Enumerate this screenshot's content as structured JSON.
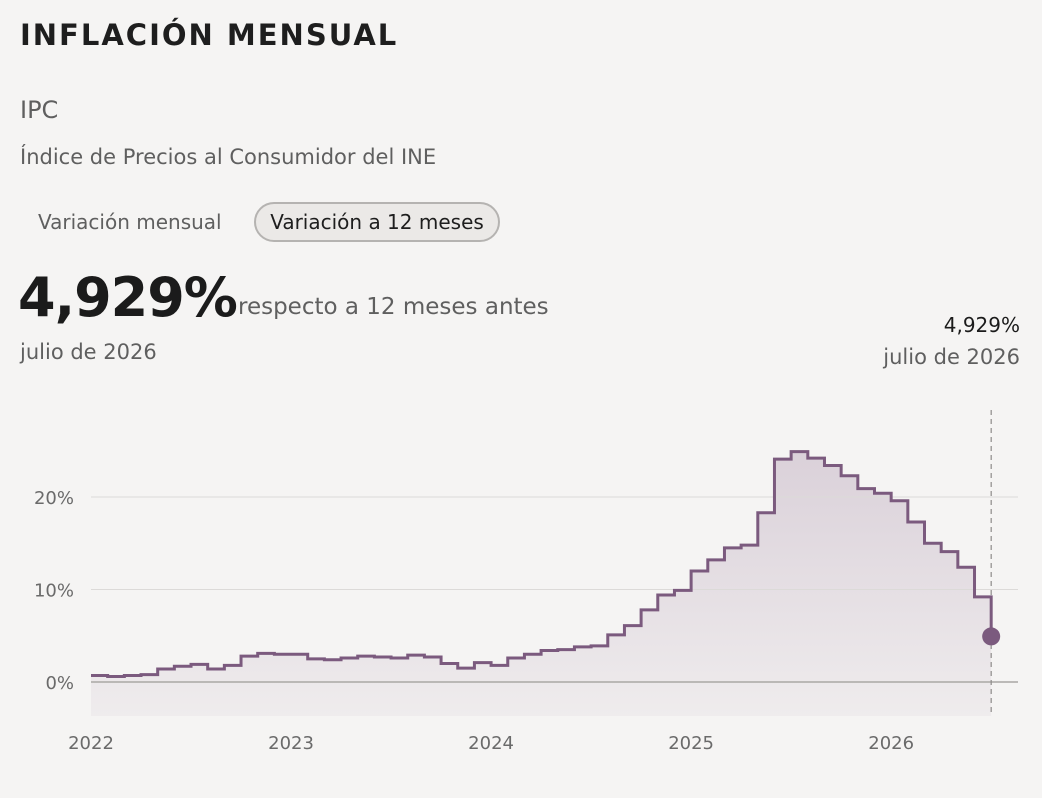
{
  "header": {
    "section_title": "INFLACIÓN MENSUAL",
    "indicator": "IPC",
    "indicator_description": "Índice de Precios al Consumidor del INE"
  },
  "tabs": [
    {
      "label": "Variación mensual",
      "active": false
    },
    {
      "label": "Variación a 12 meses",
      "active": true
    }
  ],
  "summary": {
    "value": "4,929%",
    "description": "respecto a 12 meses antes",
    "date": "julio de 2026"
  },
  "highlight": {
    "value": "4,929%",
    "date": "julio de 2026"
  },
  "colors": {
    "line": "#7b5a7e",
    "fill_top": "#d9cfd8",
    "grid": "#dcdad8",
    "zero_line": "#a9a7a5",
    "background": "#f5f4f3"
  },
  "chart_data": {
    "type": "area",
    "step": true,
    "x_start": "2022-01",
    "x_end": "2026-07",
    "x_ticks": [
      "2022",
      "2023",
      "2024",
      "2025",
      "2026"
    ],
    "y_ticks": [
      "0%",
      "10%",
      "20%"
    ],
    "y_tick_values": [
      0,
      10,
      20
    ],
    "ylim": [
      -3.7,
      30
    ],
    "grid": true,
    "series": [
      {
        "values": [
          0.7,
          0.6,
          0.7,
          0.8,
          1.4,
          1.7,
          1.9,
          1.4,
          1.8,
          2.8,
          3.1,
          3.0,
          3.0,
          2.5,
          2.4,
          2.6,
          2.8,
          2.7,
          2.6,
          2.9,
          2.7,
          2.0,
          1.5,
          2.1,
          1.8,
          2.6,
          3.0,
          3.4,
          3.5,
          3.8,
          3.9,
          5.1,
          6.1,
          7.8,
          9.4,
          9.9,
          12.0,
          13.2,
          14.5,
          14.8,
          18.3,
          24.1,
          24.9,
          24.2,
          23.4,
          22.3,
          20.9,
          20.4,
          19.6,
          17.3,
          15.0,
          14.1,
          12.4,
          9.2,
          4.929
        ]
      }
    ]
  }
}
